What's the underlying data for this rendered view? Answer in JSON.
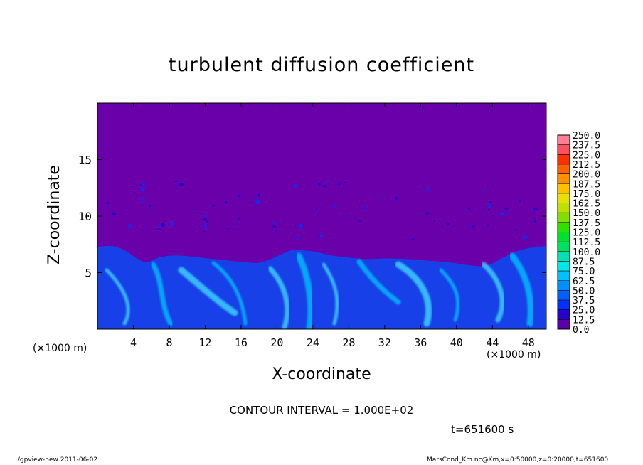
{
  "chart_data": {
    "type": "heatmap",
    "title": "turbulent diffusion coefficient",
    "xlabel": "X-coordinate",
    "ylabel": "Z-coordinate",
    "x_unit_label": "(×1000 m)",
    "z_unit_label": "(×1000 m)",
    "xlim": [
      0,
      50
    ],
    "ylim": [
      0,
      20
    ],
    "x_ticks": [
      "4",
      "8",
      "12",
      "16",
      "20",
      "24",
      "28",
      "32",
      "36",
      "40",
      "44",
      "48"
    ],
    "y_ticks": [
      "5",
      "10",
      "15"
    ],
    "colorbar": {
      "levels": [
        "0.0",
        "12.5",
        "25.0",
        "37.5",
        "50.0",
        "62.5",
        "75.0",
        "87.5",
        "100.0",
        "112.5",
        "125.0",
        "137.5",
        "150.0",
        "162.5",
        "175.0",
        "187.5",
        "200.0",
        "212.5",
        "225.0",
        "237.5",
        "250.0"
      ],
      "colors": [
        "#5a00a8",
        "#2800cc",
        "#0030ff",
        "#0060ff",
        "#0090ff",
        "#00c0ff",
        "#00e8e8",
        "#00e0b0",
        "#00e060",
        "#00e030",
        "#30e000",
        "#80e000",
        "#c0e000",
        "#e8e000",
        "#ffc000",
        "#ff9000",
        "#ff6000",
        "#ff3000",
        "#ff5060",
        "#ff8090"
      ]
    },
    "background_color": "#6a00aa",
    "contour_interval": "CONTOUR INTERVAL = 1.000E+02",
    "time_label": "t=651600  s",
    "footer_left": "./gpview-new   2011-06-02",
    "footer_right": "MarsCond_Km.nc@Km,x=0:50000,z=0:20000,t=651600"
  }
}
